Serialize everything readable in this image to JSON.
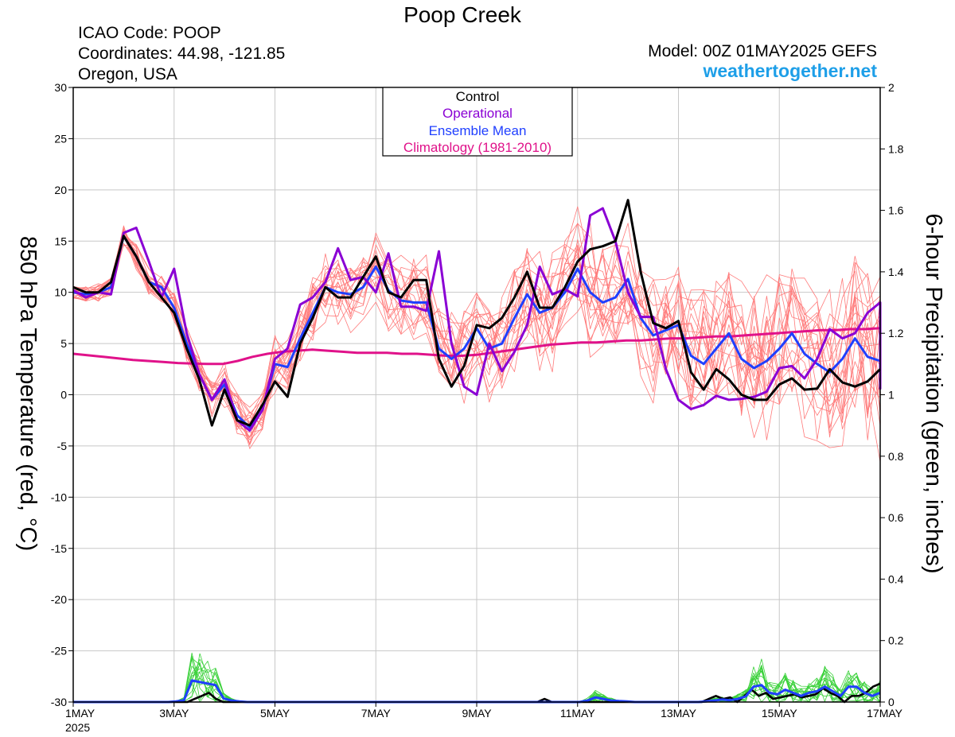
{
  "header": {
    "title": "Poop Creek",
    "station_lines": [
      "ICAO Code: POOP",
      "Coordinates: 44.98, -121.85",
      "Oregon, USA"
    ],
    "model": "Model: 00Z 01MAY2025 GEFS",
    "site": "weathertogether.net"
  },
  "legend": {
    "items": [
      {
        "label": "Control",
        "color": "#000000"
      },
      {
        "label": "Operational",
        "color": "#8a00d4"
      },
      {
        "label": "Ensemble Mean",
        "color": "#1f3fff"
      },
      {
        "label": "Climatology (1981-2010)",
        "color": "#e0128a"
      }
    ]
  },
  "chart_data": {
    "type": "line",
    "title": "Poop Creek",
    "ylabel": "850 hPa Temperature (red, °C)",
    "y2label": "6-hour Precipitation (green, inches)",
    "ylim": [
      -30,
      30
    ],
    "y2lim": [
      0,
      2
    ],
    "xlim": [
      0,
      16
    ],
    "x_unit": "days from 1 May 2025 00Z",
    "x_ticks": [
      0,
      2,
      4,
      6,
      8,
      10,
      12,
      14,
      16
    ],
    "x_tick_labels": [
      "1MAY",
      "3MAY",
      "5MAY",
      "7MAY",
      "9MAY",
      "11MAY",
      "13MAY",
      "15MAY",
      "17MAY"
    ],
    "x_sub_label": "2025",
    "y_ticks": [
      -30,
      -25,
      -20,
      -15,
      -10,
      -5,
      0,
      5,
      10,
      15,
      20,
      25,
      30
    ],
    "y2_ticks": [
      0,
      0.2,
      0.4,
      0.6,
      0.8,
      1,
      1.2,
      1.4,
      1.6,
      1.8,
      2
    ],
    "y2_tick_labels": [
      "0",
      "0.2",
      "0.4",
      "0.6",
      "0.8",
      "1",
      "1.2",
      "1.4",
      "1.6",
      "1.8",
      "2"
    ],
    "step": 0.25,
    "grid": true,
    "legend_position": "top-center",
    "colors": {
      "members": "#ff7a7a",
      "precip_members": "#3ad13a",
      "grid": "#c8c8c8"
    },
    "control": [
      10.5,
      10,
      10,
      11,
      15.5,
      13.5,
      11,
      9.5,
      8,
      4.5,
      1.5,
      -3,
      0.5,
      -2.5,
      -3,
      -1,
      1.3,
      -0.2,
      5,
      7.5,
      10.5,
      9.5,
      9.5,
      11.5,
      13.5,
      10,
      9.5,
      11.2,
      11.2,
      3.5,
      0.8,
      2.8,
      6.8,
      6.5,
      7.5,
      9.5,
      12,
      8.5,
      8.5,
      10.5,
      13,
      14.2,
      14.5,
      15,
      19,
      12,
      7,
      6.5,
      7.2,
      2.2,
      0.5,
      2.5,
      1.5,
      0,
      -0.5,
      -0.5,
      1,
      1.6,
      0.5,
      0.6,
      2.5,
      1.2,
      0.8,
      1.3,
      2.5
    ],
    "operational": [
      10.2,
      9.5,
      10,
      9.8,
      15.8,
      16.3,
      13,
      9.5,
      12.3,
      6,
      2,
      -0.5,
      1.5,
      -2.5,
      -3.5,
      -1.5,
      3.5,
      4.5,
      8.8,
      9.5,
      11,
      14.3,
      11.2,
      11.5,
      10,
      13.8,
      8.6,
      8.6,
      8.2,
      14,
      5,
      0.8,
      0,
      5,
      2.3,
      4.2,
      6.8,
      12.5,
      9.8,
      10.3,
      9.6,
      17.5,
      18.2,
      15,
      10,
      7.6,
      7.6,
      2.5,
      -0.5,
      -1.4,
      -1,
      -0.1,
      -0.5,
      -0.4,
      -0.2,
      0.3,
      2.6,
      2.8,
      1.6,
      3.5,
      6.4,
      5.5,
      6,
      8,
      9,
      5.8,
      0.8,
      0.6,
      1.6,
      4.3,
      3.5
    ],
    "ensemble_mean": [
      10,
      9.8,
      10,
      10.5,
      15.5,
      13.5,
      11,
      10.5,
      8.5,
      5,
      2,
      -0.5,
      1,
      -2,
      -3.2,
      -1.5,
      3,
      2.7,
      5.5,
      8,
      10.5,
      10,
      9.8,
      10.5,
      12.5,
      10.2,
      9.2,
      9,
      9,
      4.5,
      3.5,
      4.5,
      6.5,
      4.5,
      5,
      7.5,
      9.8,
      8,
      8.5,
      10,
      12.3,
      10,
      9,
      9.5,
      11.3,
      7.5,
      5.8,
      6.3,
      6.8,
      3.8,
      3,
      4.5,
      6,
      3.5,
      2.6,
      3.3,
      4.5,
      6,
      4,
      3,
      2.2,
      3.5,
      5.5,
      3.7,
      3.3,
      5,
      6.5
    ],
    "climatology": [
      4,
      3.85,
      3.7,
      3.55,
      3.4,
      3.3,
      3.2,
      3.1,
      3.05,
      3,
      3,
      3.3,
      3.7,
      4,
      4.2,
      4.3,
      4.4,
      4.3,
      4.2,
      4.1,
      4.1,
      4.1,
      4,
      4,
      3.9,
      3.8,
      3.8,
      3.9,
      4.1,
      4.3,
      4.5,
      4.7,
      4.9,
      5,
      5.1,
      5.1,
      5.2,
      5.3,
      5.3,
      5.4,
      5.5,
      5.5,
      5.6,
      5.7,
      5.7,
      5.8,
      5.9,
      6,
      6.1,
      6.2,
      6.3,
      6.3,
      6.4,
      6.4,
      6.5
    ],
    "precip_mean": [
      0,
      0,
      0,
      0,
      0,
      0,
      0,
      0,
      0,
      0,
      0,
      0,
      0,
      0.002,
      0.006,
      0.07,
      0.065,
      0.06,
      0.055,
      0.012,
      0.005,
      0.002,
      0,
      0,
      0,
      0,
      0,
      0,
      0,
      0,
      0,
      0,
      0,
      0,
      0,
      0,
      0,
      0,
      0,
      0,
      0,
      0,
      0,
      0,
      0,
      0,
      0,
      0,
      0,
      0,
      0,
      0,
      0,
      0,
      0,
      0,
      0,
      0,
      0,
      0,
      0,
      0,
      0,
      0,
      0,
      0.005,
      0.015,
      0.01,
      0.005,
      0.003,
      0.002,
      0,
      0,
      0,
      0,
      0,
      0,
      0,
      0,
      0,
      0.002,
      0.005,
      0.008,
      0.006,
      0.01,
      0.018,
      0.05,
      0.055,
      0.03,
      0.025,
      0.04,
      0.03,
      0.02,
      0.03,
      0.035,
      0.05,
      0.035,
      0.02,
      0.05,
      0.05,
      0.03,
      0.02,
      0.03
    ],
    "precip_control": [
      0,
      0,
      0,
      0,
      0,
      0,
      0,
      0,
      0,
      0,
      0,
      0,
      0,
      0,
      0,
      0,
      0,
      0.01,
      0.02,
      0.03,
      0.01,
      0,
      0,
      0,
      0,
      0,
      0,
      0,
      0,
      0,
      0,
      0,
      0,
      0,
      0,
      0,
      0,
      0,
      0,
      0,
      0,
      0,
      0,
      0,
      0,
      0,
      0,
      0,
      0,
      0,
      0,
      0,
      0,
      0,
      0,
      0,
      0,
      0,
      0,
      0,
      0,
      0,
      0,
      0,
      0,
      0,
      0.01,
      0,
      0,
      0,
      0,
      0,
      0,
      0,
      0,
      0,
      0,
      0,
      0,
      0,
      0,
      0,
      0,
      0,
      0,
      0,
      0,
      0,
      0,
      0.01,
      0.02,
      0.01,
      0.015,
      0,
      0.02,
      0.04,
      0.02,
      0.03,
      0.01,
      0.015,
      0.02,
      0.025,
      0.015,
      0.02,
      0.025,
      0.045,
      0.03,
      0.02,
      0,
      0.02,
      0.02,
      0.03,
      0.05,
      0.06
    ]
  }
}
